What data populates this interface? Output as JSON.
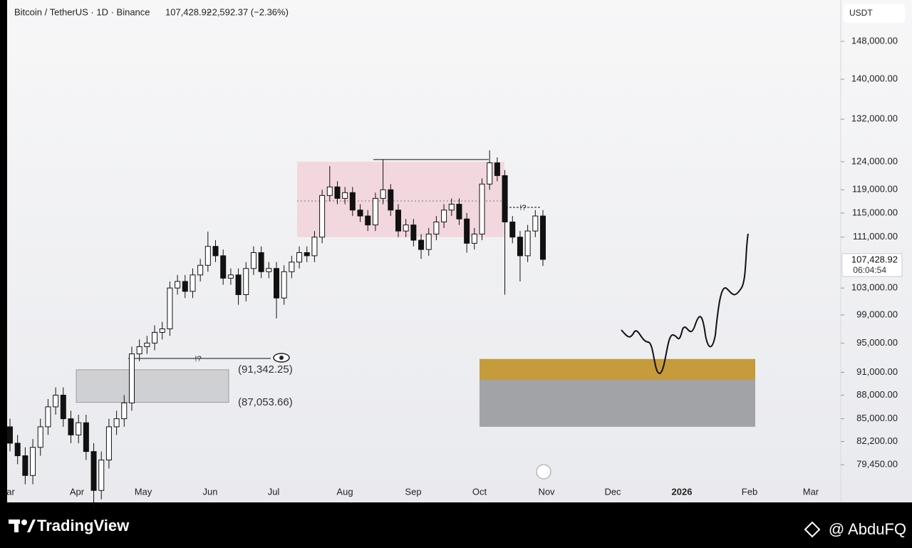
{
  "chart_data": {
    "type": "candlestick",
    "symbol": "Bitcoin / TetherUS · 1D · Binance",
    "last_price": "107,428.92",
    "change": "−2,592.37 (−2.36%)",
    "currency": "USDT",
    "countdown": "06:04:54",
    "log_scale": true,
    "x_labels": [
      "ar",
      "Apr",
      "May",
      "Jun",
      "Jul",
      "Aug",
      "Sep",
      "Oct",
      "Nov",
      "Dec",
      "2026",
      "Feb",
      "Mar"
    ],
    "ylim": [
      77000,
      152000
    ],
    "yticks": [
      {
        "value": 148000,
        "label": "148,000.00"
      },
      {
        "value": 140000,
        "label": "140,000.00"
      },
      {
        "value": 132000,
        "label": "132,000.00"
      },
      {
        "value": 124000,
        "label": "124,000.00"
      },
      {
        "value": 119000,
        "label": "119,000.00"
      },
      {
        "value": 115000,
        "label": "115,000.00"
      },
      {
        "value": 111000,
        "label": "111,000.00"
      },
      {
        "value": 103000,
        "label": "103,000.00"
      },
      {
        "value": 99000,
        "label": "99,000.00"
      },
      {
        "value": 95000,
        "label": "95,000.00"
      },
      {
        "value": 91000,
        "label": "91,000.00"
      },
      {
        "value": 88000,
        "label": "88,000.00"
      },
      {
        "value": 85000,
        "label": "85,000.00"
      },
      {
        "value": 82200,
        "label": "82,200.00"
      },
      {
        "value": 79450,
        "label": "79,450.00"
      }
    ],
    "open": [
      84000,
      82000,
      80500,
      78200,
      81500,
      84000,
      86500,
      88000,
      85000,
      83000,
      84500,
      81000,
      76500,
      80000,
      84000,
      85000,
      87000,
      93500,
      94500,
      95000,
      96500,
      97000,
      103000,
      104000,
      102500,
      105000,
      106500,
      109500,
      108000,
      104500,
      105000,
      102000,
      106000,
      108500,
      105500,
      106000,
      101500,
      105500,
      107000,
      108500,
      108000,
      111000,
      118000,
      119500,
      117500,
      118500,
      115500,
      114500,
      113000,
      117500,
      119000,
      115500,
      112000,
      113000,
      110500,
      109000,
      111500,
      113500,
      115500,
      116500,
      114000,
      110000,
      111500,
      120000,
      123800,
      121500,
      113500,
      111000,
      108000,
      112000,
      114500
    ],
    "high": [
      85000,
      83000,
      81500,
      82500,
      85000,
      87500,
      89000,
      89000,
      86000,
      85500,
      85500,
      82000,
      81000,
      85000,
      86000,
      88000,
      94500,
      95500,
      96000,
      97500,
      98000,
      104000,
      105000,
      105000,
      106000,
      107500,
      111900,
      110500,
      109000,
      106000,
      106000,
      107000,
      109500,
      109500,
      107000,
      107000,
      106500,
      108000,
      109500,
      109500,
      112000,
      119000,
      123200,
      120500,
      119500,
      119500,
      116500,
      115500,
      118500,
      124400,
      120000,
      116500,
      114000,
      114000,
      111500,
      112500,
      114500,
      116500,
      117500,
      117500,
      115000,
      112500,
      121000,
      126100,
      124800,
      122500,
      114500,
      112000,
      113000,
      115500,
      115500
    ],
    "low": [
      81000,
      79500,
      77200,
      77200,
      80500,
      83000,
      85500,
      84000,
      82000,
      82000,
      80000,
      74500,
      75500,
      79000,
      83000,
      84000,
      86000,
      92500,
      93500,
      94000,
      95500,
      96000,
      102000,
      101500,
      101500,
      104000,
      105500,
      107000,
      103500,
      103500,
      100500,
      101000,
      105000,
      104500,
      104500,
      98500,
      100500,
      104500,
      106000,
      107000,
      107000,
      110000,
      117000,
      116500,
      116500,
      114500,
      113500,
      112000,
      112000,
      116500,
      114500,
      111000,
      111000,
      109500,
      107500,
      108000,
      110500,
      112500,
      114500,
      113000,
      108500,
      109000,
      110500,
      119000,
      120500,
      102000,
      110000,
      104000,
      107000,
      111000,
      106400
    ],
    "close": [
      82000,
      80500,
      78200,
      81500,
      84000,
      86500,
      88000,
      85000,
      83000,
      84500,
      81000,
      76500,
      80000,
      84000,
      85000,
      87000,
      93500,
      94500,
      95000,
      96500,
      97000,
      103000,
      104000,
      102500,
      105000,
      106500,
      109500,
      108000,
      104500,
      105000,
      102000,
      106000,
      108500,
      105500,
      106000,
      101500,
      105500,
      107000,
      108500,
      108000,
      111000,
      118000,
      119500,
      117500,
      118500,
      115500,
      114500,
      113000,
      117500,
      119000,
      115500,
      112000,
      113000,
      110500,
      109000,
      111500,
      113500,
      115500,
      116500,
      114000,
      110000,
      111500,
      120000,
      123800,
      121500,
      113500,
      111000,
      108000,
      112000,
      114500,
      107428.92
    ],
    "zones": [
      {
        "top": 124000,
        "bottom": 111000,
        "color": "#f2d2d9"
      },
      {
        "top": 92800,
        "bottom": 90000,
        "color": "#c59b3b"
      },
      {
        "top": 90000,
        "bottom": 84000,
        "color": "#a2a3a6"
      }
    ],
    "range_levels": [
      {
        "value": 91342.25,
        "label": "(91,342.25)"
      },
      {
        "value": 87053.66,
        "label": "(87,053.66)"
      }
    ],
    "notes": [
      "!?",
      "!?"
    ]
  },
  "footer": {
    "brand": "TradingView",
    "author": "@ AbduFQ"
  }
}
